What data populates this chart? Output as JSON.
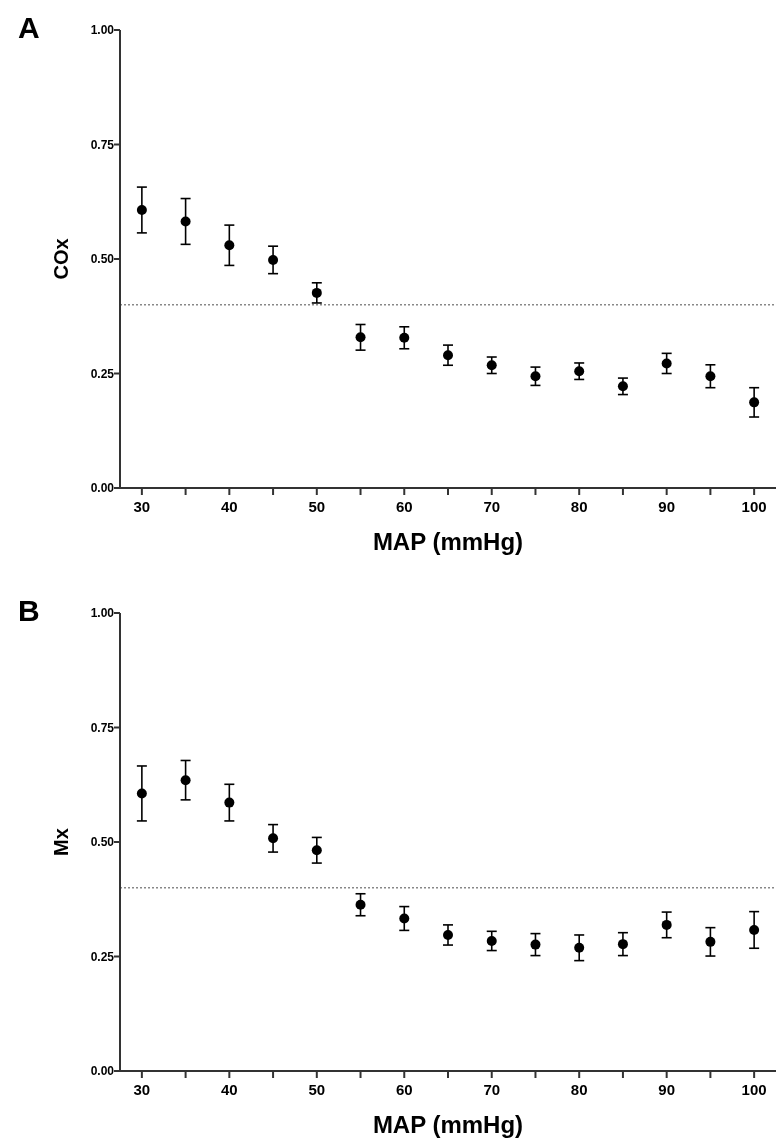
{
  "chart_data": [
    {
      "type": "scatter",
      "title": "A",
      "xlabel": "MAP (mmHg)",
      "ylabel": "COx",
      "x": [
        30,
        35,
        40,
        45,
        50,
        55,
        60,
        65,
        70,
        75,
        80,
        85,
        90,
        95,
        100
      ],
      "series": [
        {
          "color": "#000000",
          "values": [
            0.607,
            0.582,
            0.53,
            0.498,
            0.426,
            0.329,
            0.328,
            0.29,
            0.268,
            0.244,
            0.255,
            0.222,
            0.272,
            0.244,
            0.187
          ],
          "errors": [
            0.05,
            0.05,
            0.044,
            0.03,
            0.022,
            0.028,
            0.024,
            0.022,
            0.018,
            0.02,
            0.018,
            0.018,
            0.022,
            0.025,
            0.032
          ]
        }
      ],
      "xlim": [
        27.5,
        102.5
      ],
      "xticks": [
        30,
        {
          "value": 35,
          "label": null
        },
        40,
        {
          "value": 45,
          "label": null
        },
        50,
        {
          "value": 55,
          "label": null
        },
        60,
        {
          "value": 65,
          "label": null
        },
        70,
        {
          "value": 75,
          "label": null
        },
        80,
        {
          "value": 85,
          "label": null
        },
        90,
        {
          "value": 95,
          "label": null
        },
        100
      ],
      "ylim": [
        0,
        1
      ],
      "yticks": [
        {
          "value": 0,
          "label": "0.00"
        },
        {
          "value": 0.25,
          "label": "0.25"
        },
        {
          "value": 0.5,
          "label": "0.50"
        },
        {
          "value": 0.75,
          "label": "0.75"
        },
        {
          "value": 1,
          "label": "1.00"
        }
      ],
      "ref_lines": [
        {
          "axis": "y",
          "value": 0.4,
          "color": "#888888",
          "line_style": "dotted"
        }
      ],
      "marker": "circle",
      "grid": false
    },
    {
      "type": "scatter",
      "title": "B",
      "xlabel": "MAP (mmHg)",
      "ylabel": "Mx",
      "x": [
        30,
        35,
        40,
        45,
        50,
        55,
        60,
        65,
        70,
        75,
        80,
        85,
        90,
        95,
        100
      ],
      "series": [
        {
          "color": "#000000",
          "values": [
            0.606,
            0.635,
            0.586,
            0.508,
            0.482,
            0.363,
            0.333,
            0.297,
            0.284,
            0.276,
            0.269,
            0.277,
            0.319,
            0.282,
            0.308
          ],
          "errors": [
            0.06,
            0.043,
            0.04,
            0.03,
            0.028,
            0.024,
            0.026,
            0.022,
            0.021,
            0.024,
            0.028,
            0.025,
            0.028,
            0.031,
            0.04
          ]
        }
      ],
      "xlim": [
        27.5,
        102.5
      ],
      "xticks": [
        30,
        {
          "value": 35,
          "label": null
        },
        40,
        {
          "value": 45,
          "label": null
        },
        50,
        {
          "value": 55,
          "label": null
        },
        60,
        {
          "value": 65,
          "label": null
        },
        70,
        {
          "value": 75,
          "label": null
        },
        80,
        {
          "value": 85,
          "label": null
        },
        90,
        {
          "value": 95,
          "label": null
        },
        100
      ],
      "ylim": [
        0,
        1
      ],
      "yticks": [
        {
          "value": 0,
          "label": "0.00"
        },
        {
          "value": 0.25,
          "label": "0.25"
        },
        {
          "value": 0.5,
          "label": "0.50"
        },
        {
          "value": 0.75,
          "label": "0.75"
        },
        {
          "value": 1,
          "label": "1.00"
        }
      ],
      "ref_lines": [
        {
          "axis": "y",
          "value": 0.4,
          "color": "#888888",
          "line_style": "dotted"
        }
      ],
      "marker": "circle",
      "grid": false
    }
  ]
}
